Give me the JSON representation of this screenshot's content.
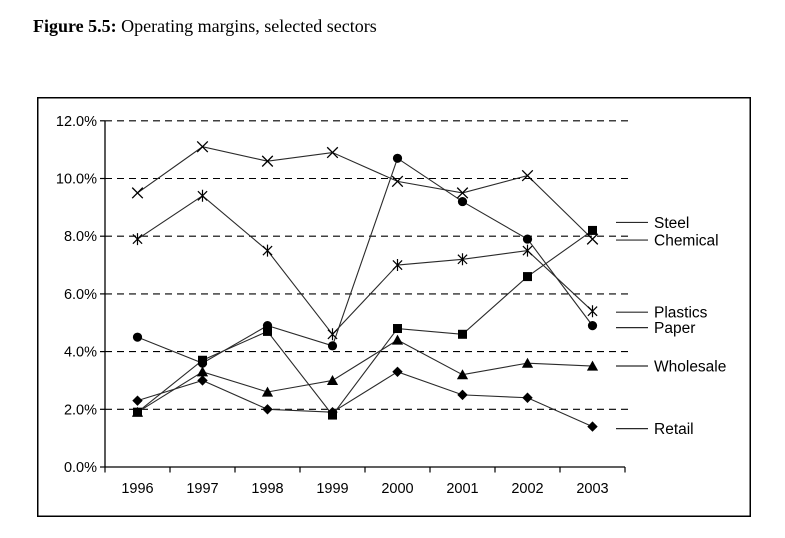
{
  "figure": {
    "label_bold": "Figure 5.5:",
    "title_rest": " Operating margins, selected sectors"
  },
  "chart_data": {
    "type": "line",
    "title": "Figure 5.5: Operating margins, selected sectors",
    "categories": [
      "1996",
      "1997",
      "1998",
      "1999",
      "2000",
      "2001",
      "2002",
      "2003"
    ],
    "xlabel": "",
    "ylabel": "",
    "ylim": [
      0,
      12
    ],
    "ytick_step": 2,
    "ytick_labels": [
      "0.0%",
      "2.0%",
      "4.0%",
      "6.0%",
      "8.0%",
      "10.0%",
      "12.0%"
    ],
    "grid": "horizontal-dashed",
    "legend_position": "right-outside-pointer-lines",
    "legend_order": [
      "Steel",
      "Chemical",
      "Plastics",
      "Paper",
      "Wholesale",
      "Retail"
    ],
    "series": [
      {
        "name": "Chemical",
        "marker": "x",
        "values": [
          9.5,
          11.1,
          10.6,
          10.9,
          9.9,
          9.5,
          10.1,
          7.9
        ]
      },
      {
        "name": "Plastics",
        "marker": "asterisk",
        "values": [
          7.9,
          9.4,
          7.5,
          4.6,
          7.0,
          7.2,
          7.5,
          5.4
        ]
      },
      {
        "name": "Paper",
        "marker": "circle",
        "values": [
          4.5,
          3.6,
          4.9,
          4.2,
          10.7,
          9.2,
          7.9,
          4.9
        ]
      },
      {
        "name": "Wholesale",
        "marker": "triangle-up",
        "values": [
          1.9,
          3.3,
          2.6,
          3.0,
          4.4,
          3.2,
          3.6,
          3.5
        ]
      },
      {
        "name": "Retail",
        "marker": "diamond",
        "values": [
          2.3,
          3.0,
          2.0,
          1.9,
          3.3,
          2.5,
          2.4,
          1.4
        ]
      },
      {
        "name": "Steel",
        "marker": "square",
        "values": [
          1.9,
          3.7,
          4.7,
          1.8,
          4.8,
          4.6,
          6.6,
          8.2
        ]
      }
    ],
    "line_color": "#2a2a2a",
    "marker_color": "#000000",
    "grid_color": "#000000",
    "axis_color": "#000000",
    "border_color": "#000000",
    "background_color": "#ffffff"
  }
}
